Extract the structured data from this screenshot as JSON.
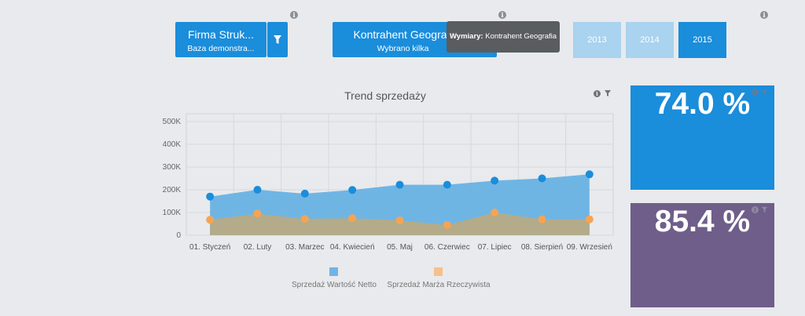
{
  "filters": [
    {
      "title": "Firma Struk...",
      "subtitle": "Baza demonstra..."
    },
    {
      "title": "Kontrahent Geografi",
      "subtitle": "Wybrano kilka"
    }
  ],
  "tooltip": {
    "label": "Wymiary:",
    "value": "Kontrahent Geografia"
  },
  "years": [
    {
      "label": "2013",
      "selected": false
    },
    {
      "label": "2014",
      "selected": false
    },
    {
      "label": "2015",
      "selected": true
    }
  ],
  "chart_title": "Trend sprzedaży",
  "chart_data": {
    "type": "area",
    "categories": [
      "01. Styczeń",
      "02. Luty",
      "03. Marzec",
      "04. Kwiecień",
      "05. Maj",
      "06. Czerwiec",
      "07. Lipiec",
      "08. Sierpień",
      "09. Wrzesień"
    ],
    "series": [
      {
        "name": "Sprzedaż Wartość Netto",
        "color": "#1a8ddb",
        "values": [
          170000,
          200000,
          183000,
          199000,
          222000,
          222000,
          240000,
          250000,
          268000
        ]
      },
      {
        "name": "Sprzedaż Marża Rzeczywista",
        "color": "#f5a454",
        "values": [
          68000,
          95000,
          72000,
          75000,
          65000,
          45000,
          100000,
          70000,
          70000
        ]
      }
    ],
    "yticks": [
      "0",
      "100K",
      "200K",
      "300K",
      "400K",
      "500K"
    ],
    "ylim": [
      0,
      500000
    ],
    "grid": true,
    "legend": "bottom"
  },
  "kpis": [
    {
      "value": "74.0 %",
      "color": "#1a8ddb"
    },
    {
      "value": "85.4 %",
      "color": "#6f5e8a"
    }
  ],
  "icons": {
    "info": "i",
    "filter": "filter-icon"
  }
}
